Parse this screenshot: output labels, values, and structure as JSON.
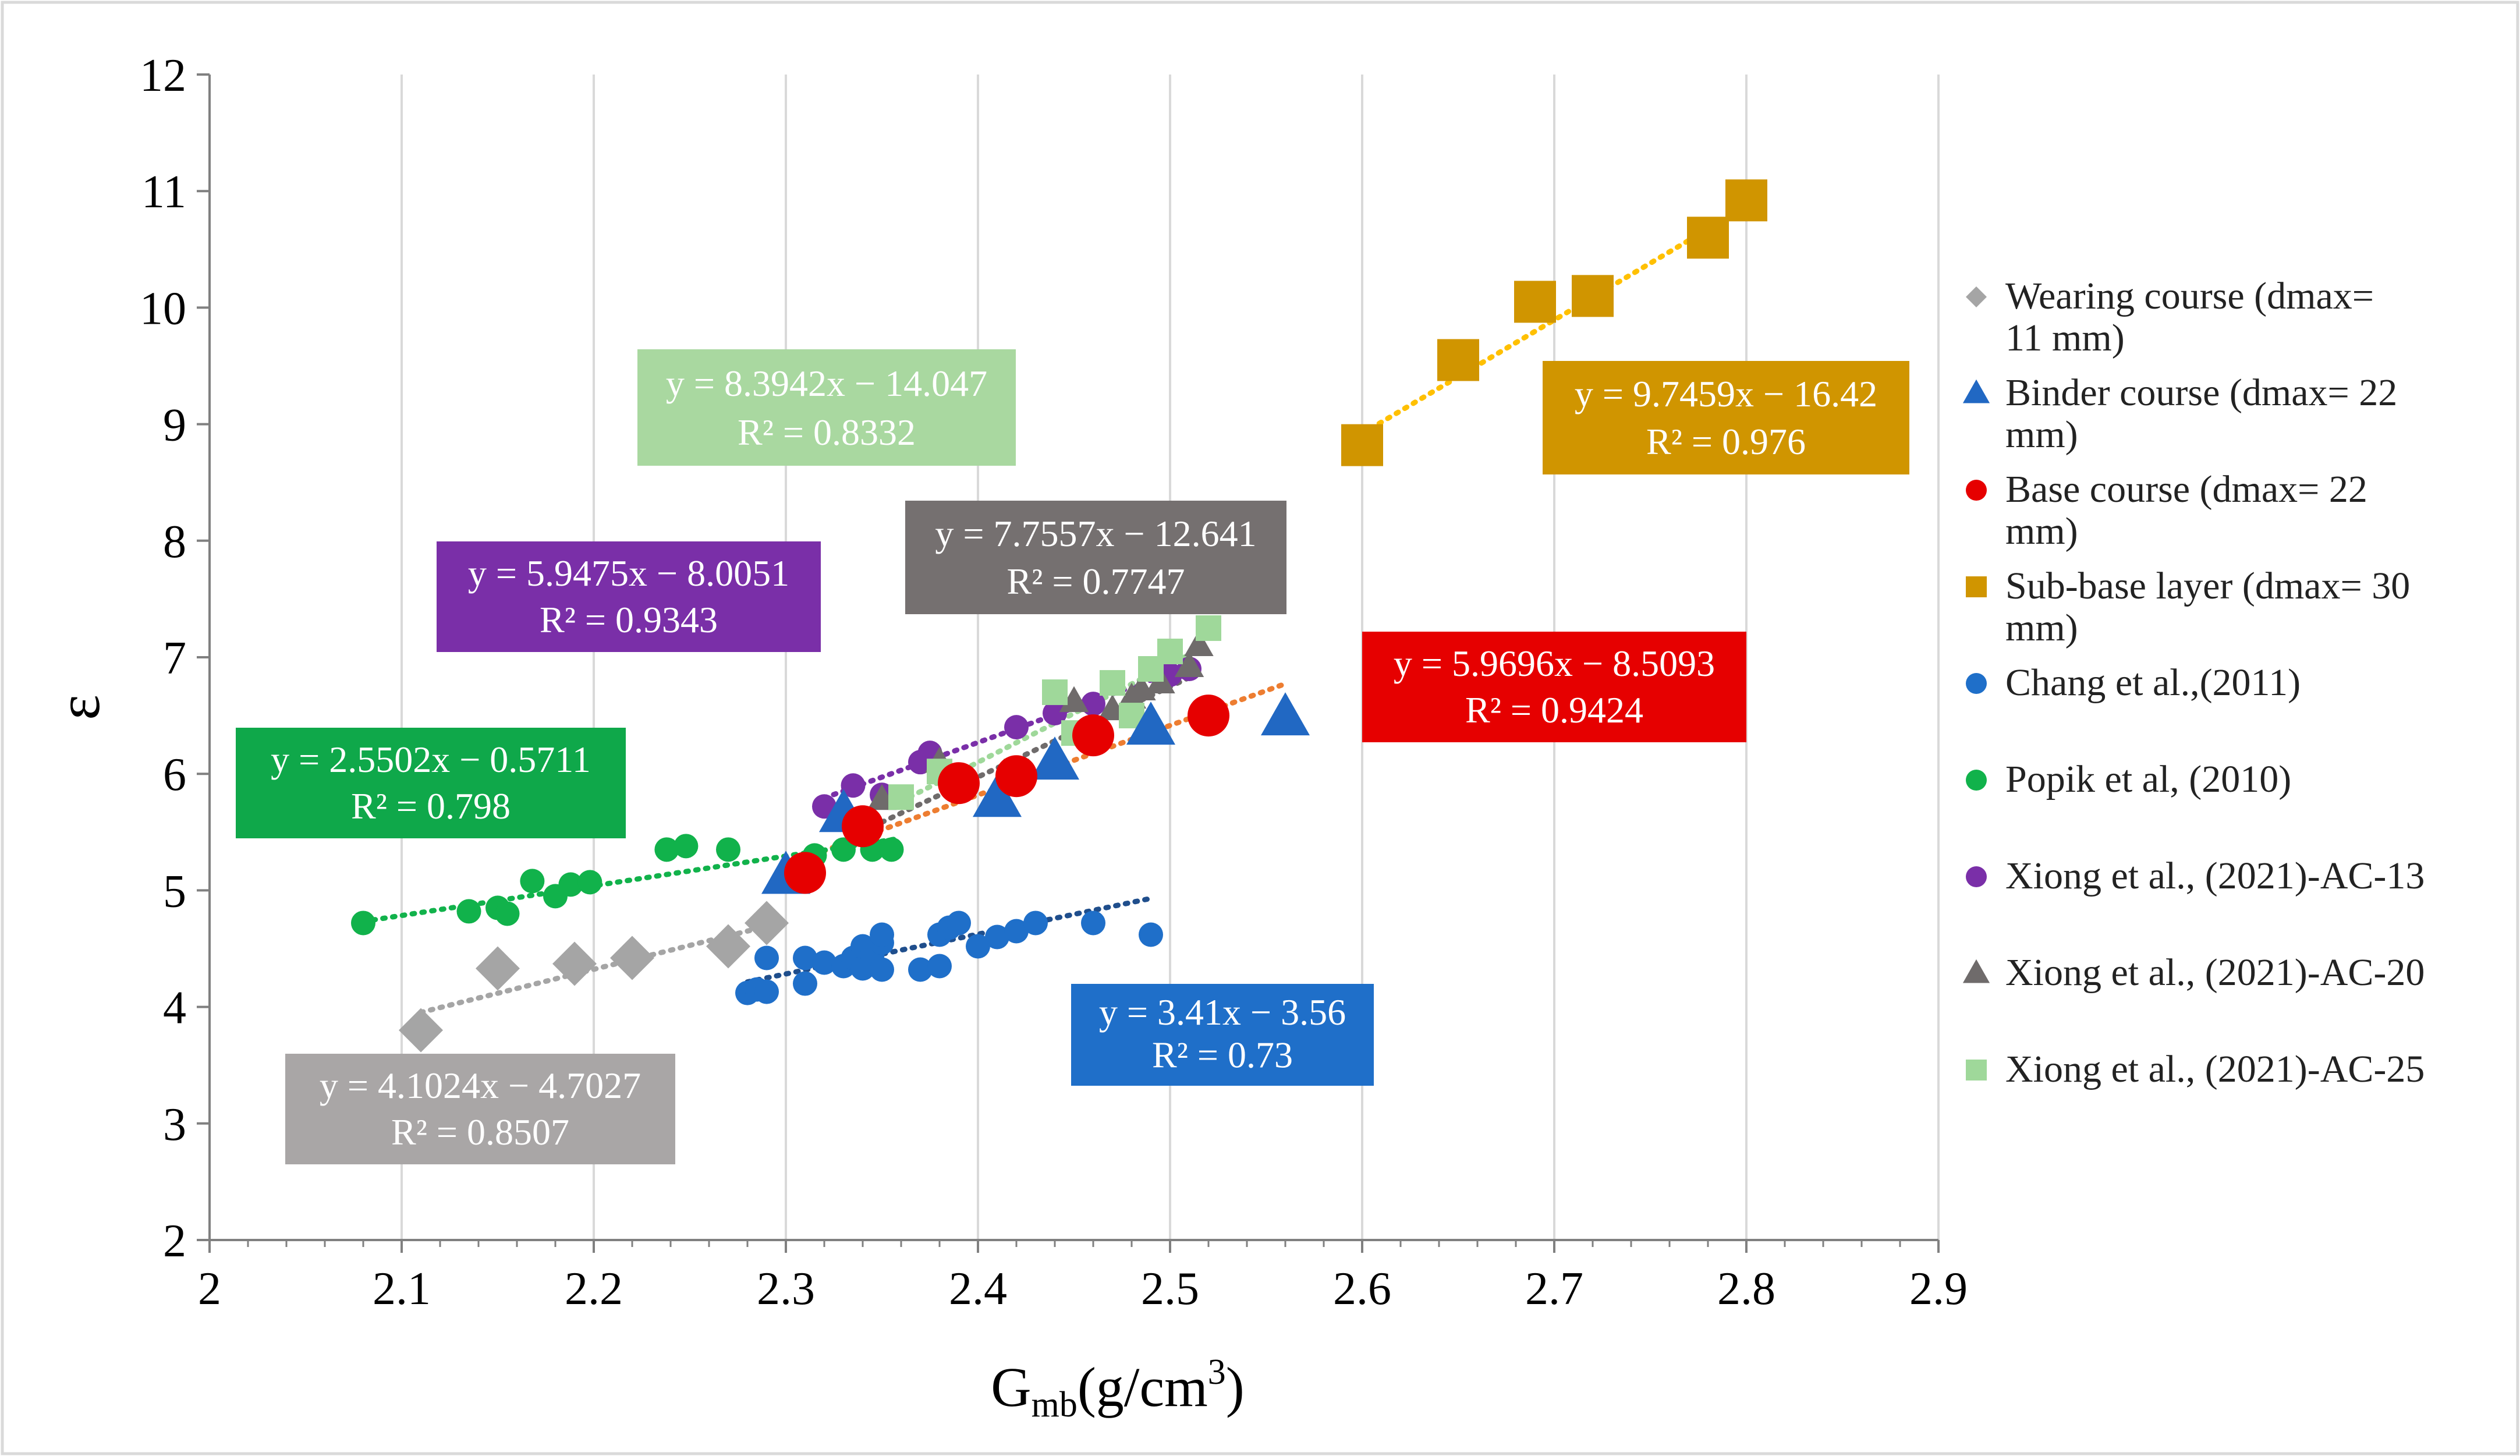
{
  "chart_data": {
    "type": "scatter",
    "title": "",
    "xlabel": "G",
    "xlabel_sub": "mb",
    "xlabel_unit": "(g/cm",
    "xlabel_sup": "3",
    "xlabel_close": ")",
    "ylabel": "ε",
    "xlim": [
      2,
      2.9
    ],
    "ylim": [
      2,
      12
    ],
    "x_ticks": [
      "2",
      "2.1",
      "2.2",
      "2.3",
      "2.4",
      "2.5",
      "2.6",
      "2.7",
      "2.8",
      "2.9"
    ],
    "y_ticks": [
      "2",
      "3",
      "4",
      "5",
      "6",
      "7",
      "8",
      "9",
      "10",
      "11",
      "12"
    ],
    "grid": "vertical",
    "legend_position": "right",
    "series": [
      {
        "name": "Wearing course (dmax= 11 mm)",
        "legend_lines": [
          "Wearing course (dmax=",
          "11 mm)"
        ],
        "marker": "diamond",
        "size": "large",
        "color": "#a5a5a5",
        "x": [
          2.11,
          2.15,
          2.19,
          2.22,
          2.27,
          2.29
        ],
        "y": [
          3.8,
          4.33,
          4.37,
          4.42,
          4.52,
          4.72
        ],
        "trend": {
          "slope": 4.1024,
          "intercept": -4.7027,
          "x0": 2.11,
          "x1": 2.29,
          "color": "#a5a5a5"
        },
        "equation": {
          "line1": "y = 4.1024x − 4.7027",
          "line2": "R² = 0.8507",
          "bg": "#a9a6a6"
        }
      },
      {
        "name": "Binder course (dmax= 22 mm)",
        "legend_lines": [
          " Binder course (dmax= 22",
          "mm)"
        ],
        "marker": "triangle",
        "size": "large",
        "color": "#2168c3",
        "x": [
          2.3,
          2.33,
          2.41,
          2.44,
          2.49,
          2.56
        ],
        "y": [
          5.12,
          5.65,
          5.78,
          6.1,
          6.4,
          6.48
        ],
        "trend": {
          "slope": 5.9696,
          "intercept": -8.5093,
          "x0": 2.3,
          "x1": 2.56,
          "color": "#ed7d31"
        },
        "equation": {
          "line1": "y = 5.9696x − 8.5093",
          "line2": "R² = 0.9424",
          "bg": "#e60000"
        }
      },
      {
        "name": "Base course (dmax= 22 mm)",
        "legend_lines": [
          "Base course (dmax= 22",
          "mm)"
        ],
        "marker": "circle",
        "size": "large",
        "color": "#e60000",
        "x": [
          2.31,
          2.34,
          2.39,
          2.42,
          2.46,
          2.52
        ],
        "y": [
          5.15,
          5.55,
          5.92,
          5.98,
          6.33,
          6.5
        ],
        "trend": null,
        "equation": null
      },
      {
        "name": "Sub-base layer (dmax= 30 mm)",
        "legend_lines": [
          "Sub-base layer (dmax= 30",
          "mm)"
        ],
        "marker": "square",
        "size": "large",
        "color": "#d09500",
        "x": [
          2.6,
          2.65,
          2.69,
          2.72,
          2.78,
          2.8
        ],
        "y": [
          8.82,
          9.55,
          10.05,
          10.1,
          10.6,
          10.92
        ],
        "trend": {
          "slope": 9.7459,
          "intercept": -16.42,
          "x0": 2.6,
          "x1": 2.8,
          "color": "#ffc000"
        },
        "equation": {
          "line1": "y = 9.7459x − 16.42",
          "line2": "R² = 0.976",
          "bg": "#d09500"
        }
      },
      {
        "name": "Chang et al.,(2011)",
        "legend_lines": [
          "Chang et al.,(2011)"
        ],
        "marker": "circle",
        "size": "small",
        "color": "#1f6fc9",
        "x": [
          2.28,
          2.285,
          2.29,
          2.29,
          2.31,
          2.31,
          2.32,
          2.33,
          2.335,
          2.34,
          2.34,
          2.345,
          2.35,
          2.35,
          2.35,
          2.37,
          2.38,
          2.38,
          2.385,
          2.39,
          2.4,
          2.41,
          2.42,
          2.43,
          2.46,
          2.49
        ],
        "y": [
          4.12,
          4.15,
          4.13,
          4.42,
          4.2,
          4.42,
          4.38,
          4.35,
          4.42,
          4.33,
          4.52,
          4.45,
          4.32,
          4.55,
          4.62,
          4.32,
          4.35,
          4.62,
          4.68,
          4.72,
          4.52,
          4.6,
          4.65,
          4.72,
          4.72,
          4.62
        ],
        "trend": {
          "slope": 3.41,
          "intercept": -3.56,
          "x0": 2.28,
          "x1": 2.49,
          "color": "#1f4e8c"
        },
        "equation": {
          "line1": "y = 3.41x − 3.56",
          "line2": "R² = 0.73",
          "bg": "#1f6fc9"
        }
      },
      {
        "name": "Popik et al, (2010)",
        "legend_lines": [
          "Popik et al, (2010)"
        ],
        "marker": "circle",
        "size": "small",
        "color": "#11b24b",
        "x": [
          2.08,
          2.135,
          2.15,
          2.155,
          2.168,
          2.18,
          2.188,
          2.198,
          2.238,
          2.248,
          2.27,
          2.31,
          2.315,
          2.33,
          2.345,
          2.355
        ],
        "y": [
          4.72,
          4.82,
          4.85,
          4.8,
          5.08,
          4.95,
          5.05,
          5.07,
          5.35,
          5.38,
          5.35,
          5.22,
          5.3,
          5.35,
          5.35,
          5.35
        ],
        "trend": {
          "slope": 2.5502,
          "intercept": -0.5711,
          "x0": 2.08,
          "x1": 2.36,
          "color": "#11b24b"
        },
        "equation": {
          "line1": "y = 2.5502x − 0.5711",
          "line2": "R² = 0.798",
          "bg": "#0fa84a"
        }
      },
      {
        "name": "Xiong et al., (2021)-AC-13",
        "legend_lines": [
          "Xiong et al., (2021)-AC-13"
        ],
        "marker": "circle",
        "size": "small",
        "color": "#7a2fa8",
        "x": [
          2.32,
          2.335,
          2.35,
          2.37,
          2.375,
          2.42,
          2.44,
          2.46,
          2.5,
          2.51
        ],
        "y": [
          5.72,
          5.9,
          5.82,
          6.1,
          6.18,
          6.4,
          6.52,
          6.6,
          6.85,
          6.9
        ],
        "trend": {
          "slope": 5.9475,
          "intercept": -8.0051,
          "x0": 2.32,
          "x1": 2.51,
          "color": "#7a2fa8"
        },
        "equation": {
          "line1": "y = 5.9475x − 8.0051",
          "line2": "R² = 0.9343",
          "bg": "#7a2fa8"
        }
      },
      {
        "name": "Xiong et al., (2021)-AC-20",
        "legend_lines": [
          "Xiong et al., (2021)-AC-20"
        ],
        "marker": "triangle",
        "size": "small",
        "color": "#6f6b6b",
        "x": [
          2.35,
          2.38,
          2.45,
          2.47,
          2.48,
          2.485,
          2.495,
          2.51,
          2.515
        ],
        "y": [
          5.78,
          6.1,
          6.62,
          6.55,
          6.65,
          6.72,
          6.78,
          6.92,
          7.1
        ],
        "trend": {
          "slope": 7.7557,
          "intercept": -12.641,
          "x0": 2.35,
          "x1": 2.515,
          "color": "#6f6b6b"
        },
        "equation": {
          "line1": "y = 7.7557x − 12.641",
          "line2": "R² = 0.7747",
          "bg": "#757070"
        }
      },
      {
        "name": "Xiong et al., (2021)-AC-25",
        "legend_lines": [
          "Xiong et al., (2021)-AC-25"
        ],
        "marker": "square",
        "size": "small",
        "color": "#9fd89a",
        "x": [
          2.36,
          2.38,
          2.42,
          2.44,
          2.45,
          2.47,
          2.48,
          2.49,
          2.5,
          2.52
        ],
        "y": [
          5.8,
          6.02,
          6.02,
          6.7,
          6.35,
          6.78,
          6.5,
          6.9,
          7.05,
          7.25
        ],
        "trend": {
          "slope": 8.3942,
          "intercept": -14.047,
          "x0": 2.36,
          "x1": 2.52,
          "color": "#9fd89a"
        },
        "equation": {
          "line1": "y = 8.3942x − 14.047",
          "line2": "R² = 0.8332",
          "bg": "#a9d8a0"
        }
      }
    ]
  }
}
